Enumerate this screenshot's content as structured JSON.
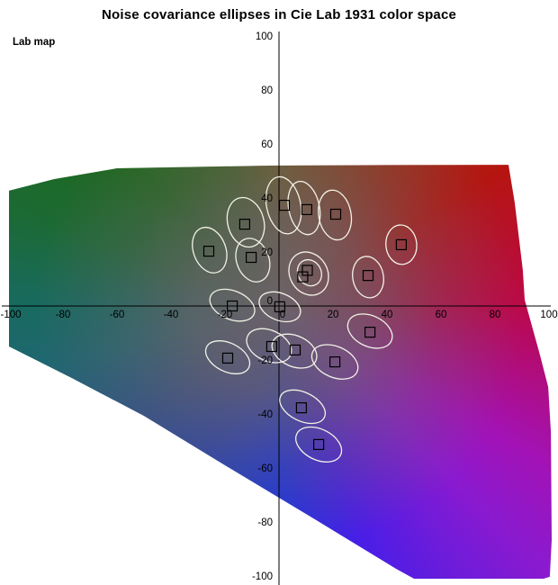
{
  "title": "Noise covariance ellipses in Cie Lab 1931 color space",
  "corner_label": "Lab map",
  "chart_data": {
    "type": "scatter",
    "title": "Noise covariance ellipses in Cie Lab 1931 color space",
    "xlabel": "",
    "ylabel": "",
    "xlim": [
      -100,
      100
    ],
    "ylim": [
      -100,
      100
    ],
    "grid": false,
    "legend": false,
    "x_ticks": [
      -100,
      -80,
      -60,
      -40,
      -20,
      0,
      20,
      40,
      60,
      80,
      100
    ],
    "y_ticks": [
      100,
      80,
      60,
      40,
      20,
      0,
      -20,
      -40,
      -60,
      -80,
      -100
    ],
    "points": [
      {
        "a": -26.0,
        "b": 20.3
      },
      {
        "a": -12.7,
        "b": 30.3
      },
      {
        "a": -10.3,
        "b": 18.0
      },
      {
        "a": 2.0,
        "b": 37.3
      },
      {
        "a": 10.3,
        "b": 35.7
      },
      {
        "a": 21.0,
        "b": 34.0
      },
      {
        "a": 45.3,
        "b": 22.7
      },
      {
        "a": 33.0,
        "b": 11.3
      },
      {
        "a": 8.8,
        "b": 10.8
      },
      {
        "a": 10.5,
        "b": 13.2
      },
      {
        "a": -17.3,
        "b": 0.0
      },
      {
        "a": 0.3,
        "b": -0.3
      },
      {
        "a": -19.0,
        "b": -19.3
      },
      {
        "a": -2.7,
        "b": -15.0
      },
      {
        "a": 6.0,
        "b": -16.3
      },
      {
        "a": 20.7,
        "b": -20.7
      },
      {
        "a": 33.7,
        "b": -9.7
      },
      {
        "a": 8.3,
        "b": -37.7
      },
      {
        "a": 14.7,
        "b": -51.3
      }
    ],
    "ellipses": [
      {
        "a": -12.3,
        "b": 31.0,
        "rx": 6.7,
        "ry": 9.3,
        "rot": -15
      },
      {
        "a": -25.7,
        "b": 20.7,
        "rx": 6.0,
        "ry": 8.7,
        "rot": -20
      },
      {
        "a": -9.7,
        "b": 17.0,
        "rx": 6.0,
        "ry": 8.3,
        "rot": -20
      },
      {
        "a": 1.7,
        "b": 37.3,
        "rx": 6.3,
        "ry": 10.7,
        "rot": -12
      },
      {
        "a": 9.3,
        "b": 36.3,
        "rx": 5.7,
        "ry": 10.0,
        "rot": -12
      },
      {
        "a": 20.7,
        "b": 33.7,
        "rx": 6.0,
        "ry": 9.3,
        "rot": -10
      },
      {
        "a": 45.3,
        "b": 22.7,
        "rx": 5.7,
        "ry": 7.3,
        "rot": -5
      },
      {
        "a": 33.0,
        "b": 10.7,
        "rx": 5.7,
        "ry": 7.7,
        "rot": -10
      },
      {
        "a": 11.0,
        "b": 12.0,
        "rx": 7.0,
        "ry": 8.3,
        "rot": -30
      },
      {
        "a": 11.3,
        "b": 12.3,
        "rx": 4.3,
        "ry": 5.0,
        "rot": -30
      },
      {
        "a": -17.3,
        "b": 0.3,
        "rx": 8.7,
        "ry": 5.3,
        "rot": 22
      },
      {
        "a": 0.3,
        "b": -0.3,
        "rx": 8.0,
        "ry": 5.0,
        "rot": 22
      },
      {
        "a": -19.0,
        "b": -19.0,
        "rx": 8.7,
        "ry": 5.3,
        "rot": 26
      },
      {
        "a": -3.7,
        "b": -14.7,
        "rx": 8.7,
        "ry": 5.7,
        "rot": 24
      },
      {
        "a": 5.7,
        "b": -16.7,
        "rx": 8.7,
        "ry": 5.7,
        "rot": 24
      },
      {
        "a": 20.7,
        "b": -20.7,
        "rx": 9.0,
        "ry": 5.7,
        "rot": 24
      },
      {
        "a": 33.7,
        "b": -9.3,
        "rx": 8.7,
        "ry": 5.7,
        "rot": 25
      },
      {
        "a": 8.7,
        "b": -37.3,
        "rx": 9.0,
        "ry": 5.3,
        "rot": 26
      },
      {
        "a": 14.7,
        "b": -51.3,
        "rx": 9.0,
        "ry": 5.7,
        "rot": 26
      }
    ],
    "gamut_polygon": [
      [
        -100,
        42.7
      ],
      [
        -83.3,
        47
      ],
      [
        -60,
        51
      ],
      [
        -3.3,
        52
      ],
      [
        40,
        52.2
      ],
      [
        85,
        52.3
      ],
      [
        87.3,
        38.3
      ],
      [
        90.3,
        13.3
      ],
      [
        91,
        2.3
      ],
      [
        96.7,
        -18.3
      ],
      [
        99.7,
        -30
      ],
      [
        100.7,
        -46.7
      ],
      [
        101,
        -86.7
      ],
      [
        100.3,
        -100.3
      ],
      [
        98,
        -101
      ],
      [
        50,
        -101
      ],
      [
        43.3,
        -97.3
      ],
      [
        13.3,
        -79
      ],
      [
        -20,
        -59
      ],
      [
        -50,
        -40.7
      ],
      [
        -76.7,
        -26.7
      ],
      [
        -100,
        -15
      ]
    ],
    "colors": {
      "background": "#ffffff",
      "axis_color": "#000000",
      "marker_stroke": "#000000",
      "ellipse_stroke": "#f2f2e6",
      "center_gray": "#6b6268",
      "conic_stops": [
        [
          0,
          "#6f5c1e"
        ],
        [
          58,
          "#b51510"
        ],
        [
          90,
          "#bc0848"
        ],
        [
          120,
          "#a312b4"
        ],
        [
          135,
          "#8a1ad0"
        ],
        [
          160,
          "#4a1ee6"
        ],
        [
          180,
          "#1832e4"
        ],
        [
          205,
          "#2340b4"
        ],
        [
          230,
          "#2b4f8e"
        ],
        [
          255,
          "#1f6672"
        ],
        [
          270,
          "#186a60"
        ],
        [
          290,
          "#1c6a34"
        ],
        [
          315,
          "#1d6818"
        ],
        [
          340,
          "#3a641a"
        ],
        [
          360,
          "#6f5c1e"
        ]
      ]
    }
  }
}
